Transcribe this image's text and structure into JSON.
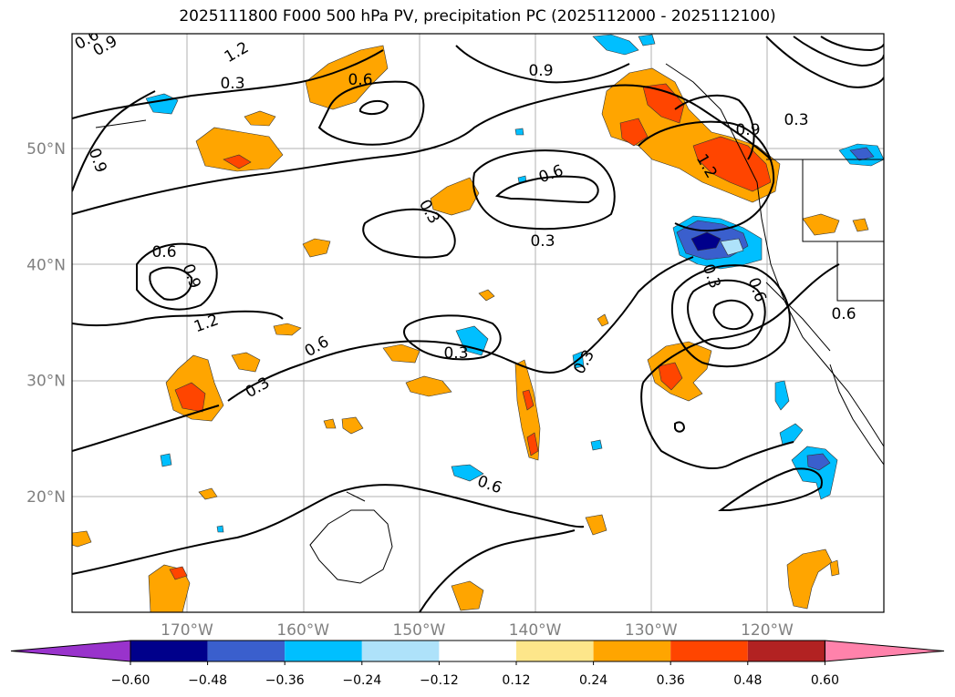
{
  "title": "2025111800 F000 500 hPa PV, precipitation PC (2025112000 - 2025112100)",
  "map": {
    "lat_ticks": [
      {
        "value": 50,
        "label": "50°N"
      },
      {
        "value": 40,
        "label": "40°N"
      },
      {
        "value": 30,
        "label": "30°N"
      },
      {
        "value": 20,
        "label": "20°N"
      }
    ],
    "lon_ticks": [
      {
        "value": -170,
        "label": "170°W"
      },
      {
        "value": -160,
        "label": "160°W"
      },
      {
        "value": -150,
        "label": "150°W"
      },
      {
        "value": -140,
        "label": "140°W"
      },
      {
        "value": -130,
        "label": "130°W"
      },
      {
        "value": -120,
        "label": "120°W"
      }
    ],
    "contour_labels": [
      "0.6",
      "0.9",
      "1.2",
      "0.3",
      "0.6",
      "0.9",
      "0.3",
      "0.6",
      "0.9",
      "1.2",
      "0.6",
      "0.3",
      "0.3",
      "0.3",
      "0.3",
      "0.6",
      "0.9",
      "0.3",
      "0.6",
      "1.2",
      "0.9",
      "0.6",
      "0.3",
      "0.6"
    ]
  },
  "colorbar": {
    "colors": [
      "#9933cc",
      "#00008b",
      "#3a5fcd",
      "#00bfff",
      "#aee2fa",
      "#ffffff",
      "#fde68a",
      "#ffa500",
      "#ff4500",
      "#b22222",
      "#ff82ab"
    ],
    "tick_labels": [
      "−0.60",
      "−0.48",
      "−0.36",
      "−0.24",
      "−0.12",
      "0.12",
      "0.24",
      "0.36",
      "0.48",
      "0.60"
    ]
  }
}
